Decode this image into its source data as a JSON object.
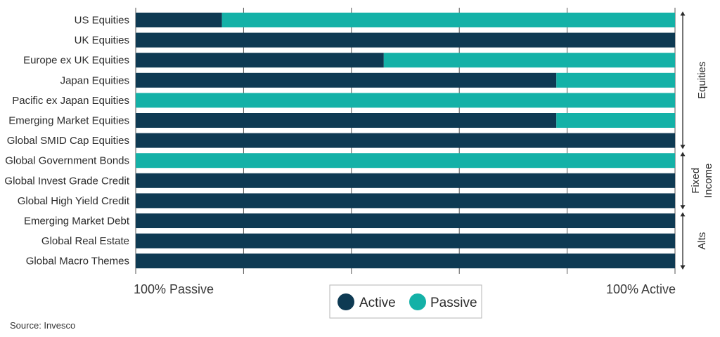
{
  "chart_data": {
    "type": "bar",
    "orientation": "horizontal",
    "stacked": true,
    "categories": [
      "US Equities",
      "UK Equities",
      "Europe ex UK Equities",
      "Japan Equities",
      "Pacific ex Japan Equities",
      "Emerging Market Equities",
      "Global SMID Cap Equities",
      "Global Government Bonds",
      "Global Invest Grade Credit",
      "Global High Yield Credit",
      "Emerging Market Debt",
      "Global Real Estate",
      "Global Macro Themes"
    ],
    "series": [
      {
        "name": "Active",
        "color": "#0e3a53",
        "values": [
          16,
          100,
          46,
          78,
          0,
          78,
          100,
          0,
          100,
          100,
          100,
          100,
          100
        ]
      },
      {
        "name": "Passive",
        "color": "#14b1a7",
        "values": [
          84,
          0,
          54,
          22,
          100,
          22,
          0,
          100,
          0,
          0,
          0,
          0,
          0
        ]
      }
    ],
    "xlim": [
      0,
      100
    ],
    "x_axis_left_label": "100% Passive",
    "x_axis_right_label": "100% Active",
    "grid": true,
    "legend_position": "bottom-center",
    "groups": [
      {
        "label": "Equities",
        "start": 0,
        "end": 6
      },
      {
        "label_lines": [
          "Fixed",
          "Income"
        ],
        "start": 7,
        "end": 9
      },
      {
        "label": "Alts",
        "start": 10,
        "end": 12
      }
    ]
  },
  "source": "Source: Invesco"
}
